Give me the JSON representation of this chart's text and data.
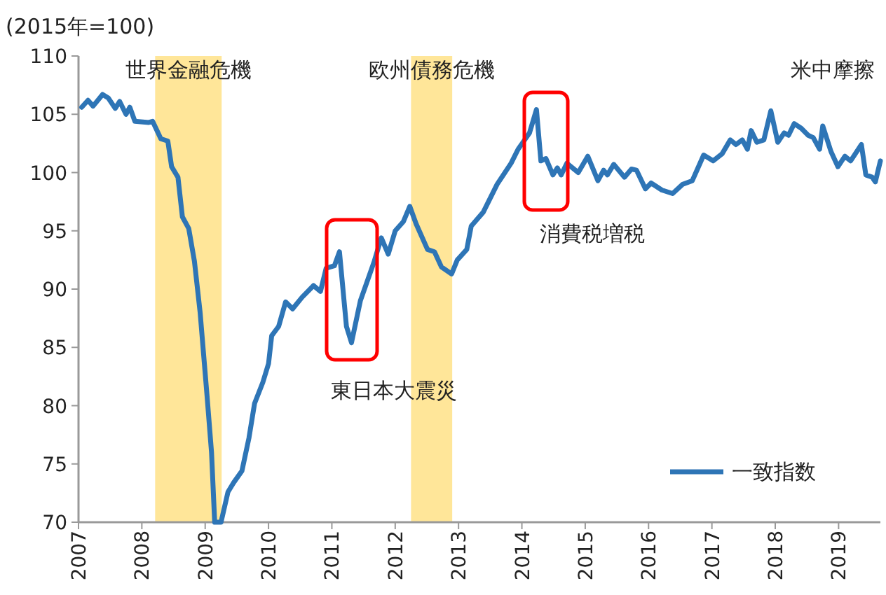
{
  "chart_data": {
    "type": "line",
    "ylabel": "(2015年=100)",
    "x": [
      2007.05,
      2007.15,
      2007.23,
      2007.38,
      2007.47,
      2007.58,
      2007.65,
      2007.75,
      2007.81,
      2007.89,
      2008.11,
      2008.17,
      2008.3,
      2008.41,
      2008.47,
      2008.57,
      2008.64,
      2008.74,
      2008.83,
      2008.92,
      2009.03,
      2009.1,
      2009.15,
      2009.25,
      2009.36,
      2009.45,
      2009.58,
      2009.69,
      2009.78,
      2009.91,
      2010.0,
      2010.05,
      2010.16,
      2010.27,
      2010.38,
      2010.53,
      2010.71,
      2010.82,
      2010.91,
      2011.04,
      2011.12,
      2011.23,
      2011.31,
      2011.45,
      2011.67,
      2011.78,
      2011.89,
      2012.0,
      2012.13,
      2012.23,
      2012.33,
      2012.51,
      2012.62,
      2012.73,
      2012.89,
      2012.98,
      2013.13,
      2013.2,
      2013.39,
      2013.61,
      2013.83,
      2013.94,
      2014.12,
      2014.23,
      2014.3,
      2014.38,
      2014.49,
      2014.56,
      2014.62,
      2014.71,
      2014.89,
      2015.04,
      2015.2,
      2015.29,
      2015.35,
      2015.45,
      2015.62,
      2015.73,
      2015.81,
      2015.95,
      2016.04,
      2016.21,
      2016.38,
      2016.54,
      2016.69,
      2016.87,
      2017.02,
      2017.16,
      2017.29,
      2017.38,
      2017.48,
      2017.56,
      2017.62,
      2017.71,
      2017.82,
      2017.93,
      2018.04,
      2018.14,
      2018.21,
      2018.3,
      2018.41,
      2018.52,
      2018.6,
      2018.7,
      2018.75,
      2018.88,
      2018.99,
      2019.1,
      2019.19,
      2019.36,
      2019.43,
      2019.53,
      2019.58,
      2019.66
    ],
    "series": [
      {
        "name": "一致指数",
        "color": "#2e75b6",
        "values": [
          105.6,
          106.2,
          105.7,
          106.7,
          106.4,
          105.5,
          106.1,
          105.0,
          105.6,
          104.4,
          104.3,
          104.4,
          102.9,
          102.7,
          100.5,
          99.6,
          96.2,
          95.2,
          92.4,
          88.0,
          80.8,
          76.0,
          70.0,
          70.0,
          72.6,
          73.4,
          74.4,
          77.2,
          80.2,
          82.0,
          83.6,
          86.0,
          86.8,
          88.9,
          88.3,
          89.3,
          90.3,
          89.8,
          91.8,
          92.0,
          93.2,
          86.8,
          85.4,
          89.0,
          92.4,
          94.4,
          93.0,
          95.0,
          95.8,
          97.1,
          95.6,
          93.4,
          93.2,
          91.9,
          91.3,
          92.5,
          93.4,
          95.4,
          96.6,
          99.0,
          100.8,
          102.0,
          103.4,
          105.4,
          101.0,
          101.2,
          99.8,
          100.4,
          99.8,
          100.8,
          100.0,
          101.4,
          99.3,
          100.2,
          99.8,
          100.7,
          99.6,
          100.3,
          100.2,
          98.6,
          99.1,
          98.5,
          98.2,
          99.0,
          99.3,
          101.5,
          101.0,
          101.6,
          102.8,
          102.4,
          102.8,
          102.0,
          103.6,
          102.6,
          102.8,
          105.3,
          102.6,
          103.4,
          103.2,
          104.2,
          103.8,
          103.2,
          103.0,
          102.0,
          104.0,
          101.8,
          100.5,
          101.4,
          101.0,
          102.4,
          99.8,
          99.6,
          99.2,
          101.0
        ]
      }
    ],
    "xlim": [
      2007,
      2019.66
    ],
    "xticks": [
      2007,
      2008,
      2009,
      2010,
      2011,
      2012,
      2013,
      2014,
      2015,
      2016,
      2017,
      2018,
      2019
    ],
    "ylim": [
      70,
      110
    ],
    "yticks": [
      70,
      75,
      80,
      85,
      90,
      95,
      100,
      105,
      110
    ],
    "bands": [
      {
        "axis": "x",
        "from": 2008.21,
        "to": 2009.26,
        "label": "世界金融危機",
        "color": "#ffe699"
      },
      {
        "axis": "x",
        "from": 2012.25,
        "to": 2012.9,
        "label": "欧州債務危機",
        "color": "#ffe699"
      }
    ],
    "annotations": [
      "東日本大震災",
      "消費税増税",
      "米中摩擦"
    ],
    "legend": "bottom right",
    "grid": false
  }
}
